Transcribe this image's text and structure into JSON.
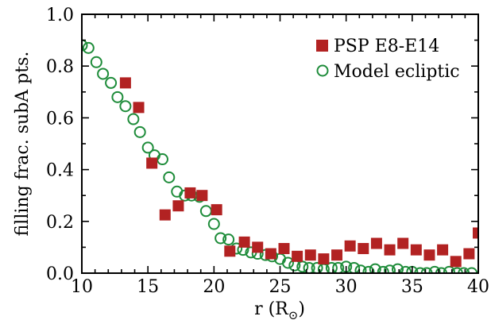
{
  "chart_data": {
    "type": "scatter",
    "xlabel": "r (R",
    "xlabel_sub": "⊙",
    "xlabel_close": ")",
    "ylabel": "filling frac. subA pts.",
    "xlim": [
      10,
      40
    ],
    "ylim": [
      0.0,
      1.0
    ],
    "x_ticks": [
      10,
      15,
      20,
      25,
      30,
      35,
      40
    ],
    "y_ticks": [
      0.0,
      0.2,
      0.4,
      0.6,
      0.8,
      1.0
    ],
    "x_tick_labels": [
      "10",
      "15",
      "20",
      "25",
      "30",
      "35",
      "40"
    ],
    "y_tick_labels": [
      "0.0",
      "0.2",
      "0.4",
      "0.6",
      "0.8",
      "1.0"
    ],
    "legend_position": "top-right",
    "series": [
      {
        "name": "PSP E8-E14",
        "marker": "filled-square",
        "color": "#b22222",
        "x": [
          13.3,
          14.3,
          15.3,
          16.3,
          17.3,
          18.2,
          19.1,
          20.2,
          21.2,
          22.3,
          23.3,
          24.3,
          25.3,
          26.3,
          27.3,
          28.3,
          29.3,
          30.3,
          31.3,
          32.3,
          33.3,
          34.3,
          35.3,
          36.3,
          37.3,
          38.3,
          39.3,
          40.0
        ],
        "y": [
          0.735,
          0.64,
          0.425,
          0.225,
          0.26,
          0.31,
          0.3,
          0.245,
          0.085,
          0.12,
          0.1,
          0.075,
          0.095,
          0.065,
          0.07,
          0.055,
          0.07,
          0.105,
          0.095,
          0.115,
          0.09,
          0.115,
          0.09,
          0.07,
          0.09,
          0.045,
          0.075,
          0.155
        ]
      },
      {
        "name": "Model ecliptic",
        "marker": "open-circle",
        "color": "#1e8c3a",
        "x": [
          10.0,
          10.5,
          11.1,
          11.6,
          12.2,
          12.7,
          13.3,
          13.9,
          14.4,
          15.0,
          15.5,
          16.1,
          16.6,
          17.2,
          17.8,
          18.3,
          18.9,
          19.4,
          20.0,
          20.5,
          21.1,
          21.7,
          22.2,
          22.8,
          23.3,
          23.9,
          24.4,
          25.0,
          25.6,
          26.1,
          26.7,
          27.2,
          27.8,
          28.3,
          28.9,
          29.4,
          30.0,
          30.6,
          31.1,
          31.7,
          32.2,
          32.8,
          33.3,
          33.9,
          34.5,
          35.0,
          35.6,
          36.1,
          36.7,
          37.2,
          37.8,
          38.4,
          38.9,
          39.5
        ],
        "y": [
          0.88,
          0.87,
          0.815,
          0.77,
          0.735,
          0.68,
          0.645,
          0.595,
          0.545,
          0.485,
          0.455,
          0.44,
          0.37,
          0.315,
          0.3,
          0.3,
          0.295,
          0.24,
          0.19,
          0.135,
          0.13,
          0.095,
          0.09,
          0.08,
          0.075,
          0.07,
          0.065,
          0.055,
          0.04,
          0.03,
          0.025,
          0.02,
          0.02,
          0.015,
          0.02,
          0.02,
          0.025,
          0.02,
          0.01,
          0.005,
          0.015,
          0.005,
          0.01,
          0.015,
          0.005,
          0.005,
          0.0,
          0.0,
          0.005,
          0.0,
          0.005,
          0.0,
          0.0,
          0.0
        ]
      }
    ]
  }
}
